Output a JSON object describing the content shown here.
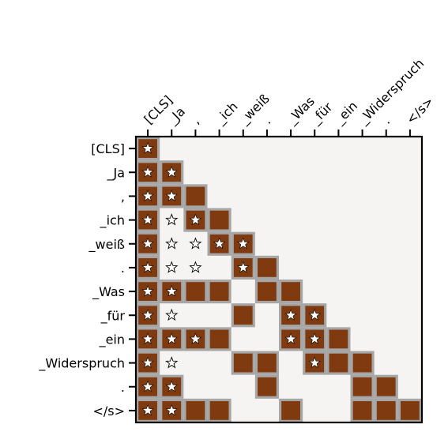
{
  "chart_data": {
    "type": "heatmap",
    "title": "",
    "xlabel": "",
    "ylabel": "",
    "tokens": [
      "[CLS]",
      "_Ja",
      ",",
      "_ich",
      "_weiß",
      ".",
      "_Was",
      "_für",
      "_ein",
      "_Widerspruch",
      ".",
      "</s>"
    ],
    "colors": {
      "filled": "#7f3b0f",
      "border": "#a6a6a6",
      "background": "#f5f4f2",
      "axis": "#000000"
    },
    "cells": [
      [
        1,
        0,
        0,
        0,
        0,
        0,
        0,
        0,
        0,
        0,
        0,
        0
      ],
      [
        1,
        1,
        0,
        0,
        0,
        0,
        0,
        0,
        0,
        0,
        0,
        0
      ],
      [
        1,
        1,
        1,
        0,
        0,
        0,
        0,
        0,
        0,
        0,
        0,
        0
      ],
      [
        1,
        0,
        1,
        1,
        0,
        0,
        0,
        0,
        0,
        0,
        0,
        0
      ],
      [
        1,
        0,
        0,
        1,
        1,
        0,
        0,
        0,
        0,
        0,
        0,
        0
      ],
      [
        1,
        0,
        0,
        0,
        1,
        1,
        0,
        0,
        0,
        0,
        0,
        0
      ],
      [
        1,
        1,
        1,
        1,
        0,
        1,
        1,
        0,
        0,
        0,
        0,
        0
      ],
      [
        1,
        0,
        0,
        0,
        1,
        0,
        1,
        1,
        0,
        0,
        0,
        0
      ],
      [
        1,
        1,
        1,
        1,
        0,
        0,
        1,
        1,
        1,
        0,
        0,
        0
      ],
      [
        1,
        0,
        0,
        0,
        1,
        1,
        0,
        1,
        1,
        1,
        0,
        0
      ],
      [
        1,
        1,
        0,
        0,
        0,
        1,
        0,
        0,
        0,
        1,
        1,
        0
      ],
      [
        1,
        1,
        1,
        1,
        0,
        0,
        1,
        0,
        0,
        1,
        1,
        1
      ]
    ],
    "stars_filled": [
      [
        0,
        0
      ],
      [
        1,
        0
      ],
      [
        1,
        1
      ],
      [
        2,
        0
      ],
      [
        2,
        1
      ],
      [
        3,
        0
      ],
      [
        3,
        2
      ],
      [
        4,
        0
      ],
      [
        4,
        3
      ],
      [
        4,
        4
      ],
      [
        5,
        0
      ],
      [
        5,
        4
      ],
      [
        6,
        0
      ],
      [
        6,
        1
      ],
      [
        7,
        0
      ],
      [
        7,
        6
      ],
      [
        7,
        7
      ],
      [
        8,
        0
      ],
      [
        8,
        1
      ],
      [
        8,
        2
      ],
      [
        8,
        6
      ],
      [
        8,
        7
      ],
      [
        9,
        0
      ],
      [
        9,
        7
      ],
      [
        10,
        0
      ],
      [
        10,
        1
      ],
      [
        11,
        0
      ],
      [
        11,
        1
      ]
    ],
    "stars_hollow": [
      [
        3,
        1
      ],
      [
        4,
        1
      ],
      [
        4,
        2
      ],
      [
        5,
        1
      ],
      [
        5,
        2
      ],
      [
        7,
        1
      ],
      [
        9,
        1
      ]
    ]
  }
}
